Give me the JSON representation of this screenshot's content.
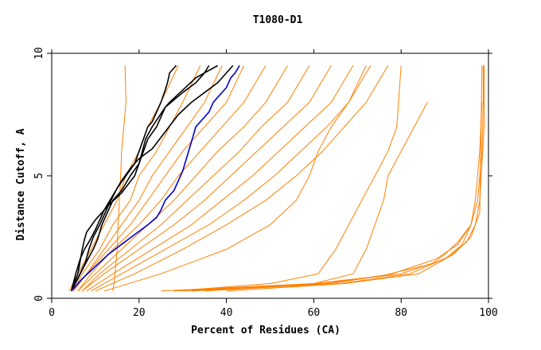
{
  "chart_data": {
    "type": "line",
    "title": "T1080-D1",
    "xlabel": "Percent of Residues (CA)",
    "ylabel": "Distance Cutoff, A",
    "xlim": [
      0,
      100
    ],
    "ylim": [
      0,
      10
    ],
    "xticks": [
      "0",
      "20",
      "40",
      "60",
      "80",
      "100"
    ],
    "yticks": [
      "0",
      "5",
      "10"
    ],
    "grid": false,
    "legend": "none",
    "colors": {
      "orange": "#ff8000",
      "black": "#000000",
      "blue": "#0000cc"
    },
    "series": [
      {
        "color": "orange",
        "x": [
          4,
          6,
          9,
          12,
          15,
          17,
          20,
          22,
          25,
          29
        ],
        "y": [
          0.3,
          1,
          2,
          3,
          4,
          5,
          6,
          7,
          8,
          9.5
        ]
      },
      {
        "color": "orange",
        "x": [
          5,
          7,
          11,
          14,
          18,
          20,
          24,
          27,
          30,
          34
        ],
        "y": [
          0.3,
          1,
          2,
          3,
          4,
          5,
          6,
          7,
          8,
          9.5
        ]
      },
      {
        "color": "orange",
        "x": [
          5,
          8,
          12,
          16,
          20,
          23,
          27,
          31,
          35,
          39
        ],
        "y": [
          0.3,
          1,
          2,
          3,
          4,
          5,
          6,
          7,
          8,
          9.5
        ]
      },
      {
        "color": "orange",
        "x": [
          5,
          8,
          13,
          18,
          22,
          26,
          30,
          35,
          40,
          44
        ],
        "y": [
          0.3,
          1,
          2,
          3,
          4,
          5,
          6,
          7,
          8,
          9.5
        ]
      },
      {
        "color": "orange",
        "x": [
          6,
          9,
          14,
          20,
          25,
          29,
          34,
          39,
          44,
          49
        ],
        "y": [
          0.3,
          1,
          2,
          3,
          4,
          5,
          6,
          7,
          8,
          9.5
        ]
      },
      {
        "color": "orange",
        "x": [
          6,
          10,
          16,
          22,
          28,
          33,
          38,
          44,
          49,
          54
        ],
        "y": [
          0.3,
          1,
          2,
          3,
          4,
          5,
          6,
          7,
          8,
          9.5
        ]
      },
      {
        "color": "orange",
        "x": [
          7,
          11,
          18,
          25,
          31,
          37,
          43,
          48,
          54,
          59
        ],
        "y": [
          0.3,
          1,
          2,
          3,
          4,
          5,
          6,
          7,
          8,
          9.5
        ]
      },
      {
        "color": "orange",
        "x": [
          7,
          12,
          20,
          28,
          35,
          41,
          47,
          53,
          59,
          64
        ],
        "y": [
          0.3,
          1,
          2,
          3,
          4,
          5,
          6,
          7,
          8,
          9.5
        ]
      },
      {
        "color": "orange",
        "x": [
          8,
          14,
          23,
          32,
          39,
          46,
          52,
          58,
          64,
          69
        ],
        "y": [
          0.3,
          1,
          2,
          3,
          4,
          5,
          6,
          7,
          8,
          9.5
        ]
      },
      {
        "color": "orange",
        "x": [
          9,
          16,
          26,
          36,
          44,
          51,
          57,
          63,
          68,
          73
        ],
        "y": [
          0.3,
          1,
          2,
          3,
          4,
          5,
          6,
          7,
          8,
          9.5
        ]
      },
      {
        "color": "orange",
        "x": [
          10,
          19,
          30,
          40,
          49,
          56,
          62,
          67,
          72,
          77
        ],
        "y": [
          0.3,
          1,
          2,
          3,
          4,
          5,
          6,
          7,
          8,
          9.5
        ]
      },
      {
        "color": "orange",
        "x": [
          14,
          14.5,
          15,
          15.2,
          15.5,
          15.8,
          16,
          16.5,
          17,
          16.8
        ],
        "y": [
          0.3,
          1,
          2,
          3,
          4,
          5,
          6,
          7,
          8,
          9.5
        ]
      },
      {
        "color": "orange",
        "x": [
          12,
          25,
          40,
          50,
          56,
          59,
          61,
          64,
          68,
          72
        ],
        "y": [
          0.3,
          1,
          2,
          3,
          4,
          5,
          6,
          7,
          8,
          9.5
        ]
      },
      {
        "color": "orange",
        "x": [
          28,
          50,
          61,
          65,
          68,
          71,
          74,
          77,
          79,
          80
        ],
        "y": [
          0.3,
          0.6,
          1,
          2,
          3,
          4,
          5,
          6,
          7,
          9.5
        ]
      },
      {
        "color": "orange",
        "x": [
          25,
          60,
          69,
          72,
          74,
          76,
          77,
          80,
          83,
          86
        ],
        "y": [
          0.3,
          0.6,
          1,
          2,
          3,
          4,
          5,
          6,
          7,
          8
        ]
      },
      {
        "color": "orange",
        "x": [
          28,
          60,
          75,
          87,
          90,
          93,
          96
        ],
        "y": [
          0.3,
          0.6,
          0.9,
          1.4,
          1.8,
          2.3,
          3
        ]
      },
      {
        "color": "orange",
        "x": [
          30,
          62,
          80,
          90,
          94,
          96,
          97,
          97.5,
          98,
          98.5
        ],
        "y": [
          0.3,
          0.6,
          1,
          1.6,
          2.2,
          3,
          4,
          5,
          6,
          8
        ]
      },
      {
        "color": "orange",
        "x": [
          32,
          66,
          82,
          91,
          95,
          97,
          98,
          98.5,
          99,
          99
        ],
        "y": [
          0.3,
          0.6,
          1,
          1.7,
          2.3,
          3,
          4,
          5.5,
          7,
          9.5
        ]
      },
      {
        "color": "orange",
        "x": [
          35,
          64,
          78,
          88,
          93,
          96,
          97.5,
          98.5,
          98.8,
          98.8
        ],
        "y": [
          0.3,
          0.6,
          1,
          1.6,
          2.2,
          3,
          4,
          6,
          8,
          9.5
        ]
      },
      {
        "color": "orange",
        "x": [
          40,
          67,
          84,
          92,
          96,
          98,
          98.5
        ],
        "y": [
          0.3,
          0.6,
          1,
          1.8,
          2.5,
          3.5,
          9.5
        ]
      },
      {
        "color": "black",
        "x": [
          4.5,
          6,
          7,
          7.8,
          8.5,
          9.5,
          11,
          13,
          15,
          17,
          19,
          20,
          21,
          22,
          23,
          24,
          25,
          26,
          26.5,
          27,
          28.5
        ],
        "y": [
          0.3,
          0.8,
          1.2,
          1.5,
          2,
          2.5,
          3,
          3.8,
          4.5,
          5,
          5.5,
          6,
          6.5,
          7,
          7.2,
          7.6,
          8,
          8.5,
          8.8,
          9.2,
          9.5
        ]
      },
      {
        "color": "black",
        "x": [
          4.5,
          6,
          7,
          7.5,
          8,
          10,
          13,
          16,
          19,
          21,
          22,
          24,
          25,
          26,
          27,
          30,
          33,
          35,
          37,
          38
        ],
        "y": [
          0.3,
          1,
          2,
          2.4,
          2.7,
          3.2,
          3.8,
          4.3,
          5,
          6,
          6.5,
          7,
          7.4,
          7.8,
          8,
          8.5,
          9,
          9.2,
          9.4,
          9.5
        ]
      },
      {
        "color": "black",
        "x": [
          4.5,
          6.5,
          8,
          9.5,
          10.5,
          11.5,
          12.5,
          14,
          16,
          18,
          20,
          21.5,
          23,
          26,
          30,
          33,
          35,
          36
        ],
        "y": [
          0.3,
          1,
          1.5,
          2,
          2.4,
          3,
          3.4,
          4,
          4.4,
          5,
          5.5,
          6.5,
          7,
          7.8,
          8.4,
          8.8,
          9.2,
          9.5
        ]
      },
      {
        "color": "black",
        "x": [
          4.5,
          5.5,
          6.5,
          7.5,
          8.5,
          10,
          12,
          14,
          16,
          18,
          20,
          23,
          26,
          29,
          32,
          35,
          38,
          40,
          41.5
        ],
        "y": [
          0.3,
          1,
          1.6,
          2,
          2.3,
          2.8,
          3.6,
          4.2,
          4.8,
          5.3,
          5.7,
          6.1,
          6.8,
          7.5,
          8,
          8.4,
          8.8,
          9.2,
          9.5
        ]
      },
      {
        "color": "blue",
        "x": [
          4.5,
          7,
          10,
          13,
          16,
          19,
          22,
          24,
          25,
          26,
          28,
          29,
          30,
          31,
          32,
          33,
          34,
          36,
          37,
          38,
          40,
          41,
          42,
          43
        ],
        "y": [
          0.3,
          0.8,
          1.3,
          1.8,
          2.2,
          2.6,
          3,
          3.3,
          3.6,
          4,
          4.4,
          4.8,
          5.2,
          5.8,
          6.4,
          7,
          7.2,
          7.6,
          8,
          8.2,
          8.6,
          9,
          9.2,
          9.5
        ]
      }
    ]
  }
}
